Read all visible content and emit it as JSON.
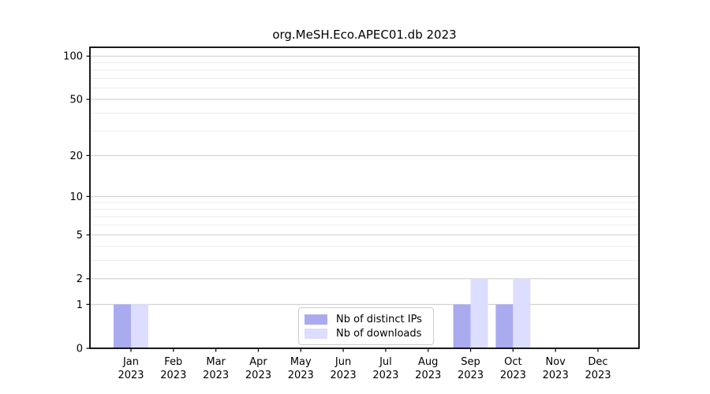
{
  "chart_data": {
    "type": "bar",
    "title": "org.MeSH.Eco.APEC01.db 2023",
    "xlabel": "",
    "ylabel": "",
    "year": "2023",
    "categories": [
      "Jan",
      "Feb",
      "Mar",
      "Apr",
      "May",
      "Jun",
      "Jul",
      "Aug",
      "Sep",
      "Oct",
      "Nov",
      "Dec"
    ],
    "series": [
      {
        "name": "Nb of distinct IPs",
        "color": "#aaaaee",
        "values": [
          1,
          0,
          0,
          0,
          0,
          0,
          0,
          0,
          1,
          1,
          0,
          0
        ]
      },
      {
        "name": "Nb of downloads",
        "color": "#ddddff",
        "values": [
          1,
          0,
          0,
          0,
          0,
          0,
          0,
          0,
          2,
          2,
          0,
          0
        ]
      }
    ],
    "yscale": "log1p",
    "ylim": [
      0,
      100
    ],
    "yticks": [
      0,
      1,
      2,
      5,
      10,
      20,
      50,
      100
    ],
    "yminorticks": [
      3,
      4,
      6,
      7,
      8,
      9,
      30,
      40,
      60,
      70,
      80,
      90
    ],
    "grid": "horizontal",
    "legend_position": "bottom-center",
    "colors": {
      "major_gridline": "#cccccc",
      "minor_gridline": "#ececec",
      "axis": "#000000",
      "background": "#ffffff"
    }
  }
}
